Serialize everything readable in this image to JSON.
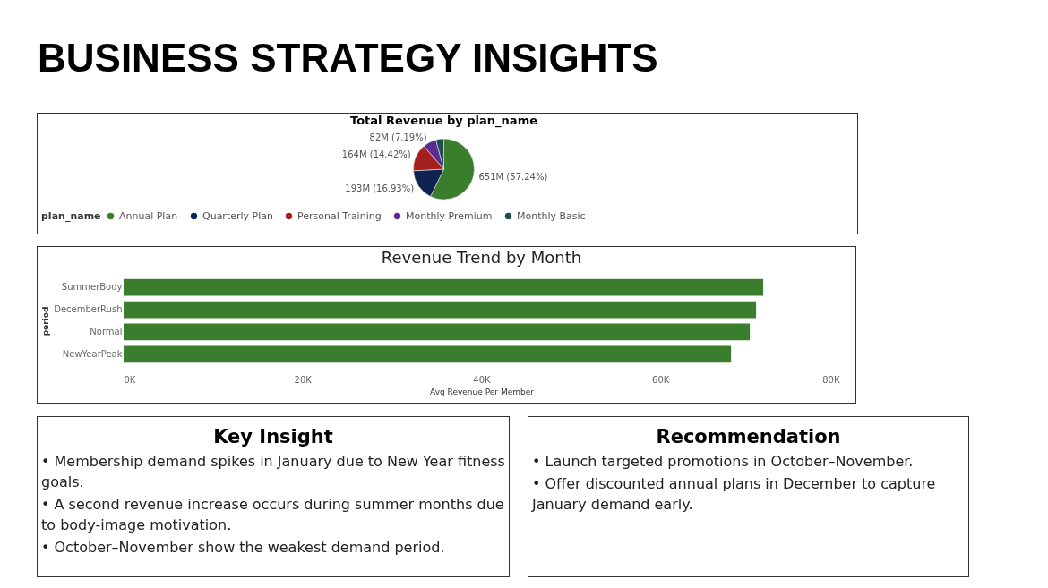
{
  "chart_data": [
    {
      "type": "other",
      "title": "BUSINESS STRATEGY INSIGHTS"
    },
    {
      "type": "pie",
      "title": "Total Revenue by plan_name",
      "legend_title": "plan_name",
      "legend": "bottom",
      "categories": [
        "Annual Plan",
        "Quarterly Plan",
        "Personal Training",
        "Monthly Premium",
        "Monthly Basic"
      ],
      "values": [
        57.24,
        16.93,
        14.42,
        7.19,
        4.22
      ],
      "value_labels": [
        "651M (57.24%)",
        "193M (16.93%)",
        "164M (14.42%)",
        "82M (7.19%)",
        null
      ],
      "colors": [
        "#3a7d2c",
        "#0f2353",
        "#a3201f",
        "#5b2d91",
        "#1e4d4d"
      ]
    },
    {
      "type": "bar",
      "title": "Revenue Trend by Month",
      "orientation": "horizontal",
      "xlabel": "Avg Revenue Per Member",
      "ylabel": "period",
      "categories": [
        "SummerBody",
        "DecemberRush",
        "Normal",
        "NewYearPeak"
      ],
      "values": [
        71500,
        70700,
        70000,
        67900
      ],
      "color": "#3a7d2c",
      "xlim": [
        0,
        80000
      ],
      "xticks": [
        {
          "value": 0,
          "label": "0K"
        },
        {
          "value": 20000,
          "label": "20K"
        },
        {
          "value": 40000,
          "label": "40K"
        },
        {
          "value": 60000,
          "label": "60K"
        },
        {
          "value": 80000,
          "label": "80K"
        }
      ]
    },
    {
      "type": "other",
      "title": "Key Insight",
      "annotations": [
        "• Membership demand spikes in January due to New Year fitness goals.",
        "• A second revenue increase occurs during summer months due to body-image motivation.",
        "• October–November show the weakest demand period."
      ]
    },
    {
      "type": "other",
      "title": "Recommendation",
      "annotations": [
        "• Launch targeted promotions in October–November.",
        "• Offer discounted annual plans in December to capture January demand early."
      ]
    }
  ]
}
